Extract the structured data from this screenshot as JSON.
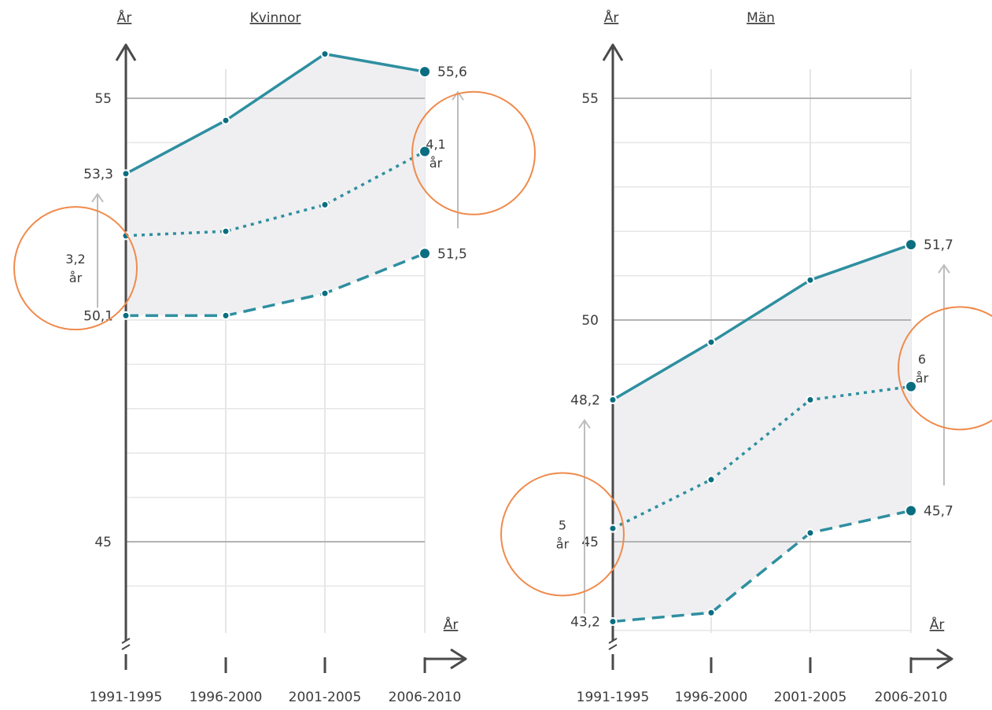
{
  "colors": {
    "line": "#2e8fa0",
    "marker": "#0b6e80",
    "shade": "#efeff1",
    "grid_major": "#b3b3b3",
    "grid_minor": "#e6e6e6",
    "axis": "#4a4a4a",
    "arrow": "#bdbdbd",
    "circle": "#f08a4b"
  },
  "chart_data": [
    {
      "type": "line",
      "title": "Kvinnor",
      "ylabel": "År",
      "xlabel": "År",
      "categories": [
        "1991-1995",
        "1996-2000",
        "2001-2005",
        "2006-2010"
      ],
      "y_ticks": [
        "55",
        "45"
      ],
      "y_tick_values": [
        55,
        45
      ],
      "ylim": [
        44.5,
        56.5
      ],
      "series": [
        {
          "style": "solid",
          "values": [
            53.3,
            54.5,
            56.0,
            55.6
          ]
        },
        {
          "style": "dotted",
          "values": [
            51.9,
            52.0,
            52.6,
            53.8
          ]
        },
        {
          "style": "dashed",
          "values": [
            50.1,
            50.1,
            50.6,
            51.5
          ]
        }
      ],
      "start_labels": [
        "53,3",
        "50,1"
      ],
      "end_labels": [
        "55,6",
        "51,5"
      ],
      "gap_start": "3,2",
      "gap_end": "4,1",
      "gap_unit": "år"
    },
    {
      "type": "line",
      "title": "Män",
      "ylabel": "År",
      "xlabel": "År",
      "categories": [
        "1991-1995",
        "1996-2000",
        "2001-2005",
        "2006-2010"
      ],
      "y_ticks": [
        "55",
        "50",
        "45"
      ],
      "y_tick_values": [
        55,
        50,
        45
      ],
      "ylim": [
        43.0,
        56.5
      ],
      "series": [
        {
          "style": "solid",
          "values": [
            48.2,
            49.5,
            50.9,
            51.7
          ]
        },
        {
          "style": "dotted",
          "values": [
            45.3,
            46.4,
            48.2,
            48.5
          ]
        },
        {
          "style": "dashed",
          "values": [
            43.2,
            43.4,
            45.2,
            45.7
          ]
        }
      ],
      "start_labels": [
        "48,2",
        "43,2"
      ],
      "end_labels": [
        "51,7",
        "45,7"
      ],
      "gap_start": "5",
      "gap_end": "6",
      "gap_unit": "år"
    }
  ]
}
